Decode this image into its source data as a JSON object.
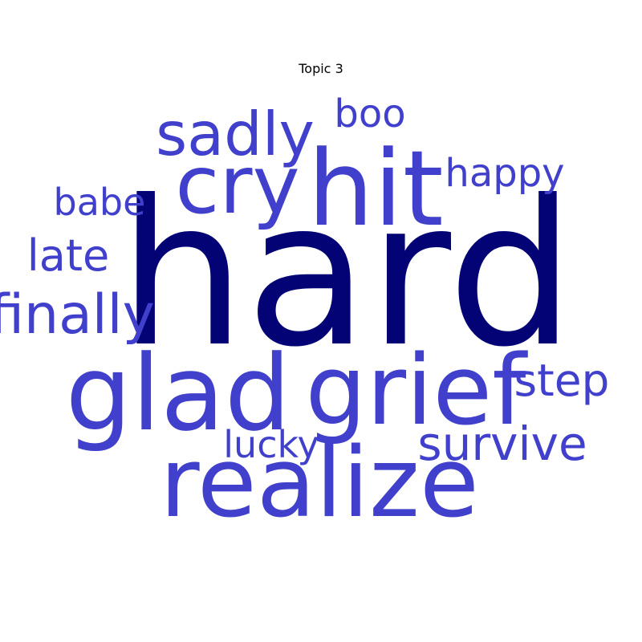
{
  "chart_data": {
    "type": "wordcloud",
    "title": "Topic 3",
    "colors": {
      "top_word": "#030375",
      "other_words": "#4040cc"
    },
    "words": [
      {
        "text": "hard",
        "weight": 1.0
      },
      {
        "text": "hit",
        "weight": 0.52
      },
      {
        "text": "glad",
        "weight": 0.52
      },
      {
        "text": "grief",
        "weight": 0.48
      },
      {
        "text": "realize",
        "weight": 0.48
      },
      {
        "text": "cry",
        "weight": 0.4
      },
      {
        "text": "sadly",
        "weight": 0.31
      },
      {
        "text": "finally",
        "weight": 0.28
      },
      {
        "text": "survive",
        "weight": 0.24
      },
      {
        "text": "step",
        "weight": 0.23
      },
      {
        "text": "late",
        "weight": 0.22
      },
      {
        "text": "boo",
        "weight": 0.2
      },
      {
        "text": "happy",
        "weight": 0.2
      },
      {
        "text": "babe",
        "weight": 0.19
      },
      {
        "text": "lucky",
        "weight": 0.19
      }
    ]
  }
}
